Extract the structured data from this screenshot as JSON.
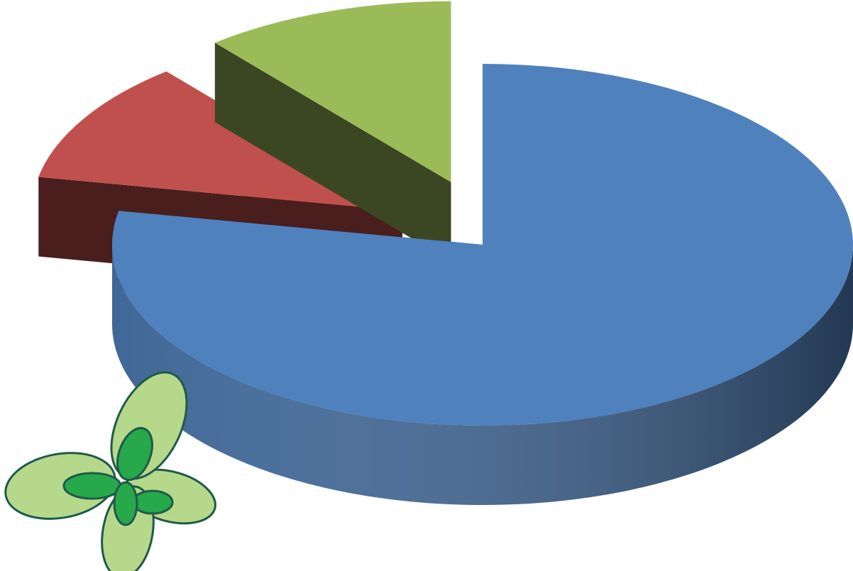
{
  "chart_data": {
    "type": "pie",
    "values": [
      78,
      11,
      11
    ],
    "colors": [
      "#4f81bd",
      "#c0504d",
      "#9bbb59"
    ]
  }
}
